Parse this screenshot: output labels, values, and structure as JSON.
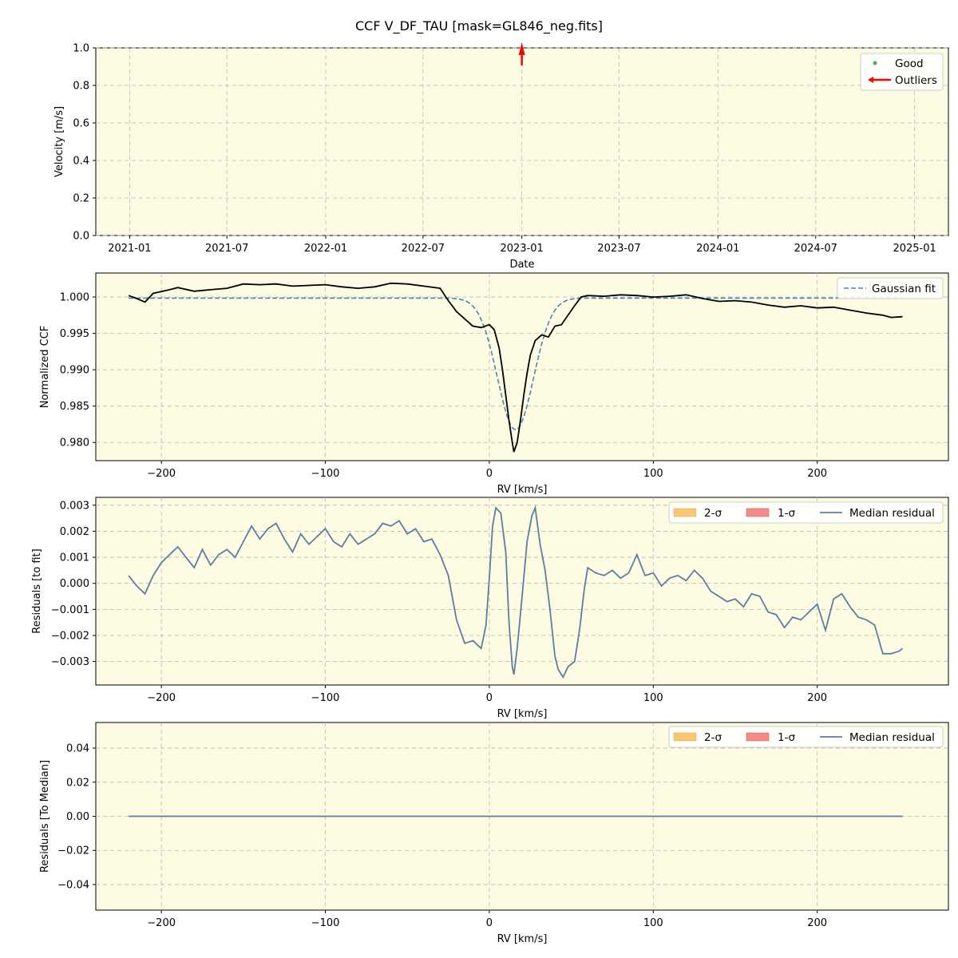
{
  "title": "CCF V_DF_TAU [mask=GL846_neg.fits]",
  "colors": {
    "background": "#fdfbe1",
    "ccf": "#000000",
    "gauss": "#4a86b8",
    "residual": "#5b7ea4",
    "good": "#5aa55a",
    "outlier": "#ff0000",
    "sigma2": "#f7c873",
    "sigma1": "#f28a8a"
  },
  "chart_data": [
    {
      "type": "scatter",
      "xlabel": "Date",
      "ylabel": "Velocity [m/s]",
      "x_ticks": [
        "2021-01",
        "2021-07",
        "2022-01",
        "2022-07",
        "2023-01",
        "2023-07",
        "2024-01",
        "2024-07",
        "2025-01"
      ],
      "x_range": [
        "2020-10-30",
        "2025-03-05"
      ],
      "ylim": [
        0.0,
        1.0
      ],
      "y_ticks": [
        "0.0",
        "0.2",
        "0.4",
        "0.6",
        "0.8",
        "1.0"
      ],
      "series": [
        {
          "name": "Good",
          "points": []
        },
        {
          "name": "Outliers",
          "points": [
            {
              "date": "2023-01-01",
              "arrow": "up"
            }
          ]
        }
      ],
      "legend": [
        "Good",
        "Outliers"
      ],
      "legend_position": "top-right",
      "grid": true
    },
    {
      "type": "line",
      "xlabel": "RV [km/s]",
      "ylabel": "Normalized CCF",
      "xlim": [
        -240,
        280
      ],
      "ylim": [
        0.9775,
        1.0033
      ],
      "x_ticks": [
        "−200",
        "−100",
        "0",
        "100",
        "200"
      ],
      "y_ticks": [
        "0.980",
        "0.985",
        "0.990",
        "0.995",
        "1.000"
      ],
      "series": [
        {
          "name": "",
          "points": [
            [
              -220,
              1.0002
            ],
            [
              -215,
              0.9998
            ],
            [
              -210,
              0.9993
            ],
            [
              -205,
              1.0005
            ],
            [
              -195,
              1.001
            ],
            [
              -190,
              1.0013
            ],
            [
              -180,
              1.0008
            ],
            [
              -170,
              1.001
            ],
            [
              -160,
              1.0012
            ],
            [
              -150,
              1.0018
            ],
            [
              -140,
              1.0017
            ],
            [
              -130,
              1.0018
            ],
            [
              -120,
              1.0015
            ],
            [
              -110,
              1.0016
            ],
            [
              -100,
              1.0017
            ],
            [
              -90,
              1.0014
            ],
            [
              -80,
              1.0012
            ],
            [
              -70,
              1.0014
            ],
            [
              -60,
              1.0019
            ],
            [
              -50,
              1.0018
            ],
            [
              -40,
              1.0015
            ],
            [
              -30,
              1.0012
            ],
            [
              -25,
              0.9995
            ],
            [
              -20,
              0.998
            ],
            [
              -15,
              0.997
            ],
            [
              -10,
              0.996
            ],
            [
              -5,
              0.9958
            ],
            [
              0,
              0.9962
            ],
            [
              3,
              0.9955
            ],
            [
              6,
              0.993
            ],
            [
              8,
              0.99
            ],
            [
              10,
              0.9865
            ],
            [
              12,
              0.983
            ],
            [
              14,
              0.98
            ],
            [
              15,
              0.9787
            ],
            [
              17,
              0.98
            ],
            [
              19,
              0.983
            ],
            [
              21,
              0.9865
            ],
            [
              23,
              0.9895
            ],
            [
              25,
              0.992
            ],
            [
              28,
              0.994
            ],
            [
              32,
              0.9948
            ],
            [
              36,
              0.9945
            ],
            [
              40,
              0.996
            ],
            [
              44,
              0.9962
            ],
            [
              48,
              0.9975
            ],
            [
              52,
              0.9988
            ],
            [
              56,
              1.0
            ],
            [
              60,
              1.0002
            ],
            [
              70,
              1.0001
            ],
            [
              80,
              1.0003
            ],
            [
              90,
              1.0002
            ],
            [
              100,
              1.0
            ],
            [
              110,
              1.0001
            ],
            [
              120,
              1.0003
            ],
            [
              130,
              0.9998
            ],
            [
              140,
              0.9994
            ],
            [
              150,
              0.9995
            ],
            [
              160,
              0.9993
            ],
            [
              170,
              0.9989
            ],
            [
              180,
              0.9986
            ],
            [
              190,
              0.9988
            ],
            [
              200,
              0.9985
            ],
            [
              210,
              0.9986
            ],
            [
              220,
              0.9982
            ],
            [
              230,
              0.9978
            ],
            [
              240,
              0.9975
            ],
            [
              245,
              0.9972
            ],
            [
              252,
              0.9973
            ]
          ]
        },
        {
          "name": "Gaussian fit",
          "model": {
            "offset": 0.99985,
            "amplitude": -0.0181,
            "center": 16,
            "sigma": 11
          }
        }
      ],
      "legend": [
        "Gaussian fit"
      ],
      "legend_position": "top-right",
      "grid": true
    },
    {
      "type": "line",
      "xlabel": "RV [km/s]",
      "ylabel": "Residuals [to fit]",
      "xlim": [
        -240,
        280
      ],
      "ylim": [
        -0.0039,
        0.0033
      ],
      "x_ticks": [
        "−200",
        "−100",
        "0",
        "100",
        "200"
      ],
      "y_ticks": [
        "−0.003",
        "−0.002",
        "−0.001",
        "0.000",
        "0.001",
        "0.002",
        "0.003"
      ],
      "series": [
        {
          "name": "Median residual",
          "points": [
            [
              -220,
              0.0003
            ],
            [
              -215,
              -0.0001
            ],
            [
              -210,
              -0.0004
            ],
            [
              -205,
              0.0003
            ],
            [
              -200,
              0.0008
            ],
            [
              -195,
              0.0011
            ],
            [
              -190,
              0.0014
            ],
            [
              -185,
              0.001
            ],
            [
              -180,
              0.0006
            ],
            [
              -175,
              0.0013
            ],
            [
              -170,
              0.0007
            ],
            [
              -165,
              0.0011
            ],
            [
              -160,
              0.0013
            ],
            [
              -155,
              0.001
            ],
            [
              -150,
              0.0016
            ],
            [
              -145,
              0.0022
            ],
            [
              -140,
              0.0017
            ],
            [
              -135,
              0.0021
            ],
            [
              -130,
              0.0023
            ],
            [
              -125,
              0.0017
            ],
            [
              -120,
              0.0012
            ],
            [
              -115,
              0.0019
            ],
            [
              -110,
              0.0015
            ],
            [
              -105,
              0.0018
            ],
            [
              -100,
              0.0021
            ],
            [
              -95,
              0.0016
            ],
            [
              -90,
              0.0014
            ],
            [
              -85,
              0.0019
            ],
            [
              -80,
              0.0015
            ],
            [
              -75,
              0.0017
            ],
            [
              -70,
              0.0019
            ],
            [
              -65,
              0.0023
            ],
            [
              -60,
              0.0022
            ],
            [
              -55,
              0.0024
            ],
            [
              -50,
              0.0019
            ],
            [
              -45,
              0.0021
            ],
            [
              -40,
              0.0016
            ],
            [
              -35,
              0.0017
            ],
            [
              -30,
              0.0011
            ],
            [
              -25,
              0.0003
            ],
            [
              -20,
              -0.0014
            ],
            [
              -15,
              -0.0023
            ],
            [
              -10,
              -0.0022
            ],
            [
              -5,
              -0.0025
            ],
            [
              -2,
              -0.0016
            ],
            [
              0,
              0.0002
            ],
            [
              2,
              0.0022
            ],
            [
              4,
              0.0029
            ],
            [
              7,
              0.0027
            ],
            [
              10,
              0.0012
            ],
            [
              12,
              -0.0015
            ],
            [
              14,
              -0.0032
            ],
            [
              15,
              -0.0035
            ],
            [
              17,
              -0.0025
            ],
            [
              20,
              -0.0005
            ],
            [
              23,
              0.0016
            ],
            [
              26,
              0.0026
            ],
            [
              28,
              0.0029
            ],
            [
              31,
              0.0015
            ],
            [
              34,
              0.0005
            ],
            [
              37,
              -0.001
            ],
            [
              40,
              -0.0028
            ],
            [
              42,
              -0.0033
            ],
            [
              45,
              -0.0036
            ],
            [
              48,
              -0.0032
            ],
            [
              52,
              -0.003
            ],
            [
              55,
              -0.0018
            ],
            [
              58,
              -0.0002
            ],
            [
              60,
              0.0006
            ],
            [
              65,
              0.0004
            ],
            [
              70,
              0.0003
            ],
            [
              75,
              0.0005
            ],
            [
              80,
              0.0002
            ],
            [
              85,
              0.0004
            ],
            [
              90,
              0.0011
            ],
            [
              95,
              0.0003
            ],
            [
              100,
              0.0004
            ],
            [
              105,
              -0.0001
            ],
            [
              110,
              0.0002
            ],
            [
              115,
              0.0003
            ],
            [
              120,
              0.0001
            ],
            [
              125,
              0.0005
            ],
            [
              130,
              0.0002
            ],
            [
              135,
              -0.0003
            ],
            [
              140,
              -0.0005
            ],
            [
              145,
              -0.0007
            ],
            [
              150,
              -0.0006
            ],
            [
              155,
              -0.0009
            ],
            [
              160,
              -0.0004
            ],
            [
              165,
              -0.0005
            ],
            [
              170,
              -0.0011
            ],
            [
              175,
              -0.0012
            ],
            [
              180,
              -0.0017
            ],
            [
              185,
              -0.0013
            ],
            [
              190,
              -0.0014
            ],
            [
              195,
              -0.0011
            ],
            [
              200,
              -0.0008
            ],
            [
              205,
              -0.0018
            ],
            [
              210,
              -0.0006
            ],
            [
              215,
              -0.0004
            ],
            [
              220,
              -0.0009
            ],
            [
              225,
              -0.0013
            ],
            [
              230,
              -0.0014
            ],
            [
              235,
              -0.0016
            ],
            [
              240,
              -0.0027
            ],
            [
              245,
              -0.0027
            ],
            [
              250,
              -0.0026
            ],
            [
              252,
              -0.0025
            ]
          ]
        }
      ],
      "legend": [
        "2-σ",
        "1-σ",
        "Median residual"
      ],
      "legend_position": "top-right",
      "grid": true
    },
    {
      "type": "line",
      "xlabel": "RV [km/s]",
      "ylabel": "Residuals [To Median]",
      "xlim": [
        -240,
        280
      ],
      "ylim": [
        -0.055,
        0.055
      ],
      "x_ticks": [
        "−200",
        "−100",
        "0",
        "100",
        "200"
      ],
      "y_ticks": [
        "−0.04",
        "−0.02",
        "0.00",
        "0.02",
        "0.04"
      ],
      "series": [
        {
          "name": "Median residual",
          "points": [
            [
              -220,
              0.0
            ],
            [
              252,
              0.0
            ]
          ]
        }
      ],
      "legend": [
        "2-σ",
        "1-σ",
        "Median residual"
      ],
      "legend_position": "top-right",
      "grid": true
    }
  ]
}
